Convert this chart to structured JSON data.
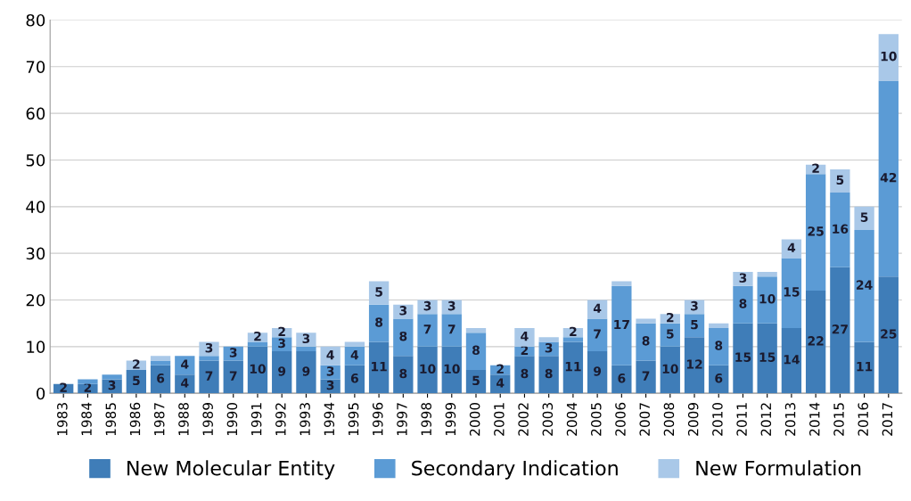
{
  "chart_data": {
    "type": "bar",
    "stacked": true,
    "categories": [
      "1983",
      "1984",
      "1985",
      "1986",
      "1987",
      "1988",
      "1989",
      "1990",
      "1991",
      "1992",
      "1993",
      "1994",
      "1995",
      "1996",
      "1997",
      "1998",
      "1999",
      "2000",
      "2001",
      "2002",
      "2003",
      "2004",
      "2005",
      "2006",
      "2007",
      "2008",
      "2009",
      "2010",
      "2011",
      "2012",
      "2013",
      "2014",
      "2015",
      "2016",
      "2017"
    ],
    "series": [
      {
        "name": "New Molecular Entity",
        "color": "#3f7db8",
        "values": [
          2,
          2,
          3,
          5,
          6,
          4,
          7,
          7,
          10,
          9,
          9,
          3,
          6,
          11,
          8,
          10,
          10,
          5,
          4,
          8,
          8,
          11,
          9,
          6,
          7,
          10,
          12,
          6,
          15,
          15,
          14,
          22,
          27,
          11,
          25
        ],
        "value_labels": [
          "2",
          "2",
          "3",
          "5",
          "6",
          "4",
          "7",
          "7",
          "10",
          "9",
          "9",
          "3",
          "6",
          "11",
          "8",
          "10",
          "10",
          "5",
          "4",
          "8",
          "8",
          "11",
          "9",
          "6",
          "7",
          "10",
          "12",
          "6",
          "15",
          "15",
          "14",
          "22",
          "27",
          "11",
          "25"
        ]
      },
      {
        "name": "Secondary Indication",
        "color": "#5b9bd5",
        "values": [
          0,
          1,
          1,
          0,
          1,
          4,
          1,
          3,
          1,
          3,
          1,
          3,
          4,
          8,
          8,
          7,
          7,
          8,
          2,
          2,
          3,
          1,
          7,
          17,
          8,
          5,
          5,
          8,
          8,
          10,
          15,
          25,
          16,
          24,
          42
        ],
        "value_labels": [
          null,
          null,
          null,
          null,
          null,
          "4",
          null,
          "3",
          null,
          "3",
          null,
          "3",
          "4",
          "8",
          "8",
          "7",
          "7",
          "8",
          "2",
          "2",
          "3",
          null,
          "7",
          "17",
          "8",
          "5",
          "5",
          "8",
          "8",
          "10",
          "15",
          "25",
          "16",
          "24",
          "42"
        ]
      },
      {
        "name": "New Formulation",
        "color": "#a9c8e8",
        "values": [
          0,
          0,
          0,
          2,
          1,
          0,
          3,
          0,
          2,
          2,
          3,
          4,
          1,
          5,
          3,
          3,
          3,
          1,
          0,
          4,
          1,
          2,
          4,
          1,
          1,
          2,
          3,
          1,
          3,
          1,
          4,
          2,
          5,
          5,
          10
        ],
        "value_labels": [
          null,
          null,
          null,
          "2",
          null,
          null,
          "3",
          null,
          "2",
          "2",
          "3",
          "4",
          null,
          "5",
          "3",
          "3",
          "3",
          null,
          null,
          "4",
          null,
          "2",
          "4",
          null,
          null,
          "2",
          "3",
          null,
          "3",
          null,
          "4",
          "2",
          "5",
          "5",
          "10"
        ]
      }
    ],
    "ylim": [
      0,
      80
    ],
    "yticks": [
      0,
      10,
      20,
      30,
      40,
      50,
      60,
      70,
      80
    ],
    "grid": "y",
    "legend": "bottom"
  }
}
